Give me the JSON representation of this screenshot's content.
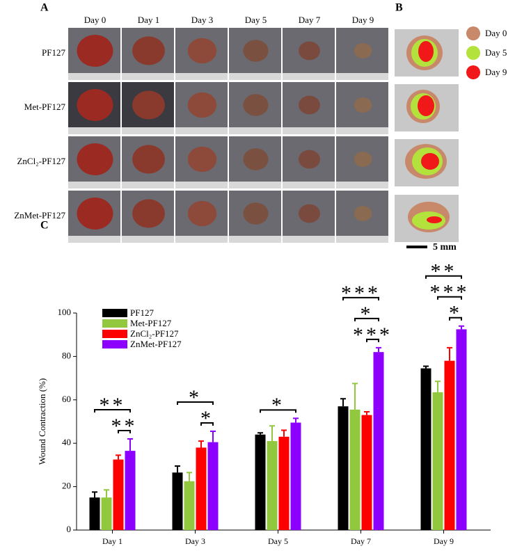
{
  "panel_a": {
    "label": "A",
    "columns": [
      "Day 0",
      "Day 1",
      "Day 3",
      "Day 5",
      "Day 7",
      "Day 9"
    ],
    "rows": [
      "PF127",
      "Met-PF127",
      "ZnCl₂-PF127",
      "ZnMet-PF127"
    ]
  },
  "panel_b": {
    "label": "B",
    "legend": [
      {
        "name": "Day 0",
        "color": "#c8896a"
      },
      {
        "name": "Day 5",
        "color": "#b4e23c"
      },
      {
        "name": "Day 9",
        "color": "#f01818"
      }
    ],
    "scale_bar": "5 mm"
  },
  "chart_data": {
    "type": "bar",
    "label": "C",
    "y_label": "Wound Contraction (%)",
    "categories": [
      "Day 1",
      "Day 3",
      "Day 5",
      "Day 7",
      "Day 9"
    ],
    "series": [
      {
        "name": "PF127",
        "color": "#000000",
        "values": [
          15,
          26.5,
          44,
          57,
          74.5
        ],
        "errors": [
          2.5,
          3,
          0.8,
          3.5,
          1
        ]
      },
      {
        "name": "Met-PF127",
        "color": "#92c83e",
        "values": [
          15,
          22.5,
          41,
          55.5,
          63.5
        ],
        "errors": [
          3.5,
          4,
          7,
          12,
          5
        ]
      },
      {
        "name": "ZnCl₂-PF127",
        "color": "#ff0000",
        "values": [
          32.5,
          38,
          43,
          53,
          78
        ],
        "errors": [
          2,
          3,
          3,
          1.5,
          6
        ]
      },
      {
        "name": "ZnMet-PF127",
        "color": "#8b00ff",
        "values": [
          36.5,
          40.5,
          49.5,
          82,
          92.5
        ],
        "errors": [
          5.5,
          5,
          2,
          2,
          1.5
        ]
      }
    ],
    "significance": [
      {
        "category": 0,
        "series": [
          0,
          3
        ],
        "label": "**"
      },
      {
        "category": 0,
        "series": [
          2,
          3
        ],
        "label": "**"
      },
      {
        "category": 1,
        "series": [
          0,
          3
        ],
        "label": "*"
      },
      {
        "category": 1,
        "series": [
          2,
          3
        ],
        "label": "*"
      },
      {
        "category": 2,
        "series": [
          0,
          3
        ],
        "label": "*"
      },
      {
        "category": 3,
        "series": [
          0,
          3
        ],
        "label": "***"
      },
      {
        "category": 3,
        "series": [
          1,
          3
        ],
        "label": "*"
      },
      {
        "category": 3,
        "series": [
          2,
          3
        ],
        "label": "***"
      },
      {
        "category": 4,
        "series": [
          0,
          3
        ],
        "label": "**"
      },
      {
        "category": 4,
        "series": [
          1,
          3
        ],
        "label": "***"
      },
      {
        "category": 4,
        "series": [
          2,
          3
        ],
        "label": "*"
      }
    ],
    "ylim": [
      0,
      100
    ],
    "yticks": [
      0,
      20,
      40,
      60,
      80,
      100
    ],
    "legend": "upper left"
  }
}
